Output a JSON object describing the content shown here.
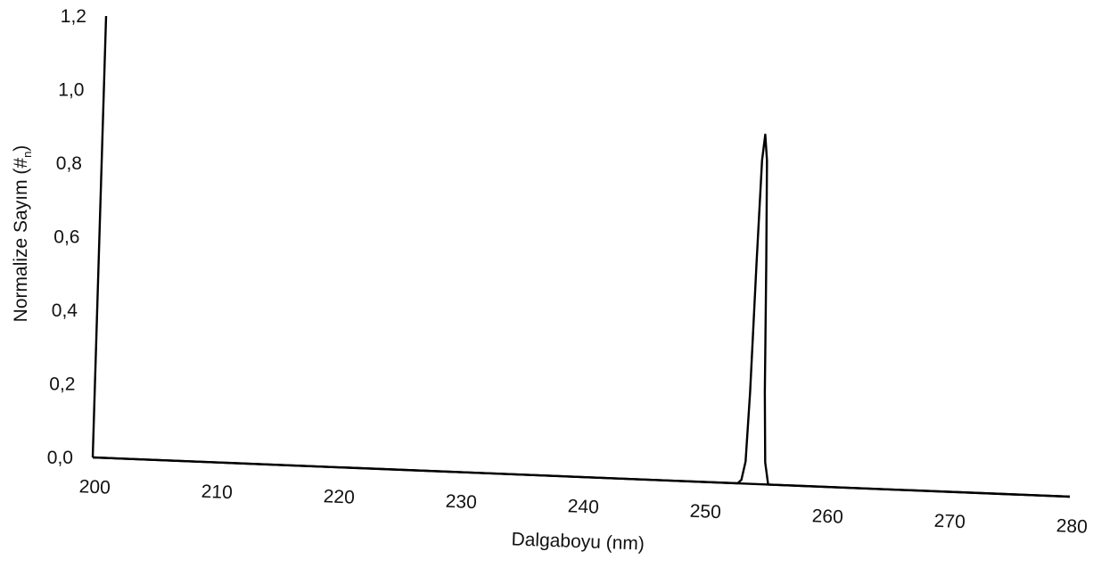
{
  "chart_data": {
    "type": "line",
    "title": "",
    "xlabel": "Dalgaboyu (nm)",
    "ylabel": {
      "main": "Normalize Sayım (#",
      "sub": "n",
      "close": ")"
    },
    "xlim": [
      200,
      280
    ],
    "ylim": [
      0.0,
      1.2
    ],
    "x_ticks": [
      200,
      210,
      220,
      230,
      240,
      250,
      260,
      270,
      280
    ],
    "x_tick_labels": [
      "200",
      "210",
      "220",
      "230",
      "240",
      "250",
      "260",
      "270",
      "280"
    ],
    "y_ticks": [
      0.0,
      0.2,
      0.4,
      0.6,
      0.8,
      1.0,
      1.2
    ],
    "y_tick_labels": [
      "0,0",
      "0,2",
      "0,4",
      "0,6",
      "0,8",
      "1,0",
      "1,2"
    ],
    "grid": false,
    "series": [
      {
        "x": [
          200,
          252.8,
          253.1,
          253.4,
          253.6,
          253.8,
          254.0,
          254.2,
          254.4,
          254.6,
          254.8,
          255.0,
          255.3,
          280
        ],
        "y": [
          0.0,
          0.0,
          0.01,
          0.06,
          0.25,
          0.6,
          0.88,
          0.95,
          0.88,
          0.6,
          0.25,
          0.06,
          0.0,
          0.0
        ]
      }
    ],
    "colors": {
      "line": "#000000",
      "axis": "#000000"
    }
  }
}
